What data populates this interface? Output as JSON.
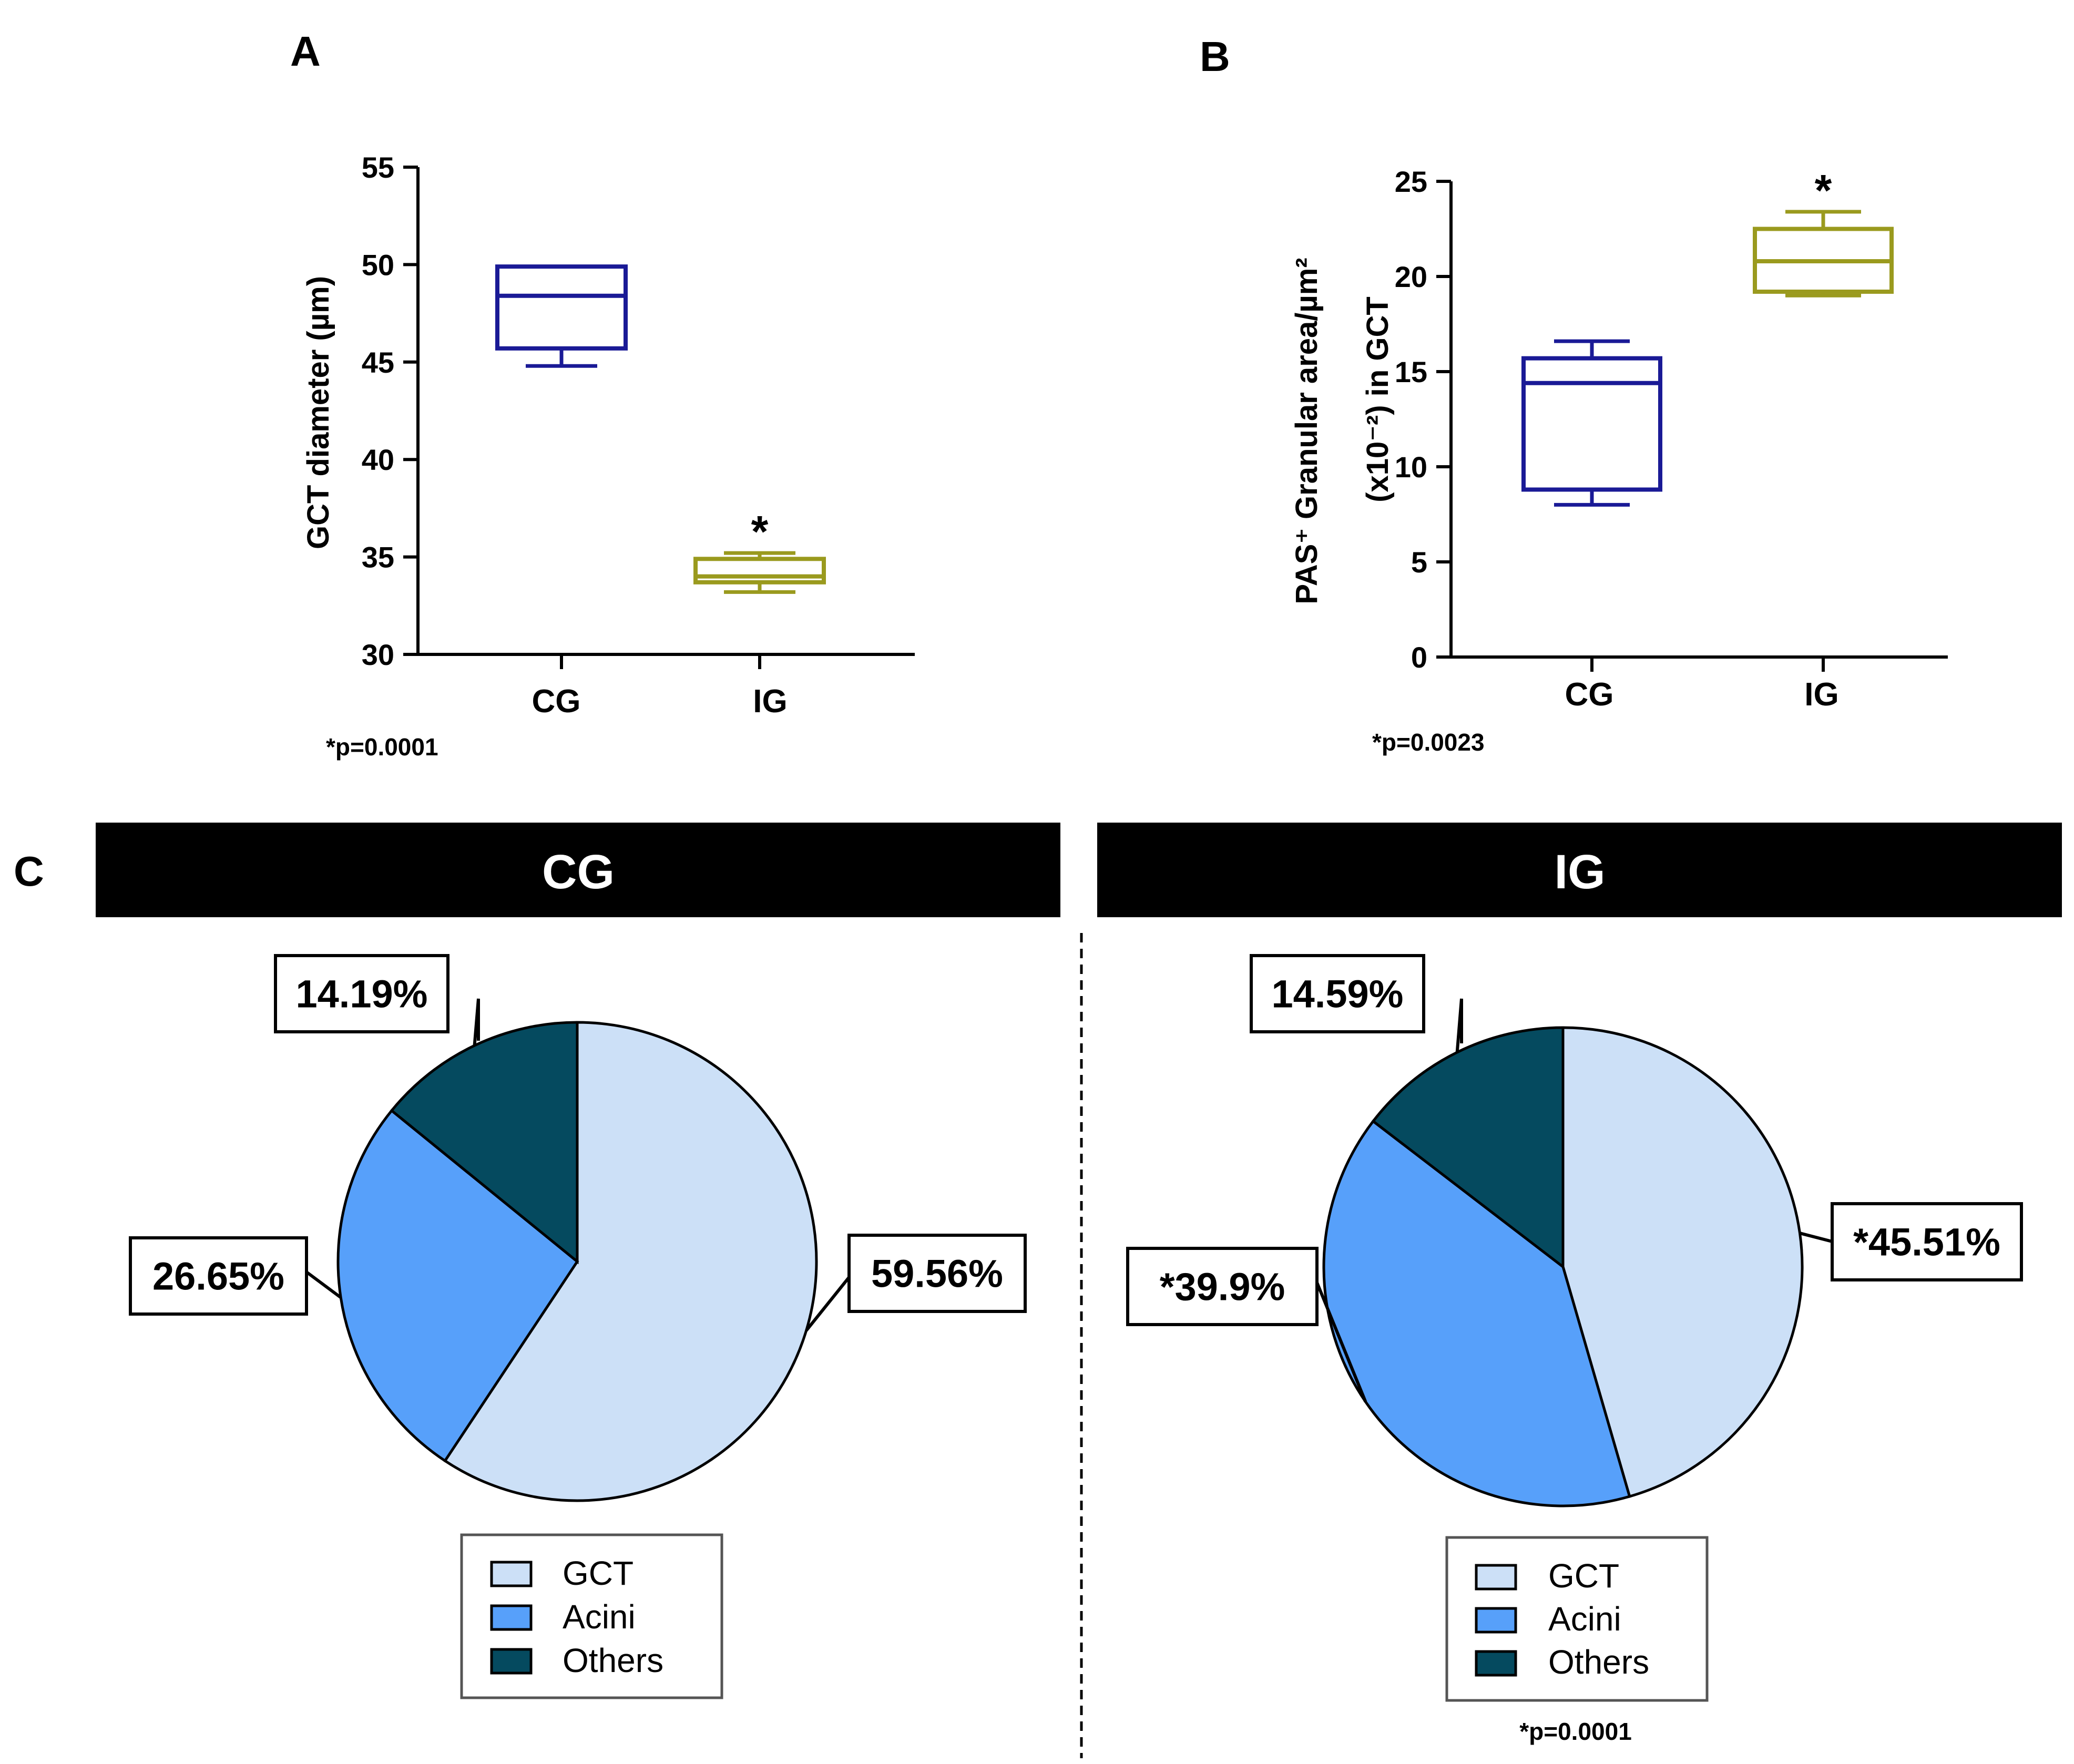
{
  "colors": {
    "cg_box": "#1a1a96",
    "ig_box": "#9a9a1e",
    "gct": "#cce0f7",
    "acini": "#57a0fa",
    "others": "#054a5f",
    "banner": "#000000"
  },
  "panel_a_letter": "A",
  "panel_b_letter": "B",
  "panel_c_letter": "C",
  "chart_data": [
    {
      "type": "box",
      "panel": "A",
      "title": "",
      "ylabel": "GCT diameter (µm)",
      "ylim": [
        30,
        55
      ],
      "yticks": [
        "30",
        "35",
        "40",
        "45",
        "50",
        "55"
      ],
      "ytick_values": [
        30,
        35,
        40,
        45,
        50,
        55
      ],
      "categories": [
        "CG",
        "IG"
      ],
      "series": [
        {
          "name": "CG",
          "min": 44.8,
          "q1": 45.7,
          "median": 48.4,
          "q3": 49.9,
          "max": 49.9,
          "significant": false
        },
        {
          "name": "IG",
          "min": 33.2,
          "q1": 33.7,
          "median": 34.0,
          "q3": 34.9,
          "max": 35.2,
          "significant": true
        }
      ],
      "star": "*",
      "footnote": "*p=0.0001"
    },
    {
      "type": "box",
      "panel": "B",
      "ylabel_line1": "PAS⁺ Granular area/µm²",
      "ylabel_line2": "(x10⁻²) in GCT",
      "ylim": [
        0,
        25
      ],
      "yticks": [
        "0",
        "5",
        "10",
        "15",
        "20",
        "25"
      ],
      "ytick_values": [
        0,
        5,
        10,
        15,
        20,
        25
      ],
      "categories": [
        "CG",
        "IG"
      ],
      "series": [
        {
          "name": "CG",
          "min": 8.0,
          "q1": 8.8,
          "median": 14.4,
          "q3": 15.7,
          "max": 16.6,
          "significant": false
        },
        {
          "name": "IG",
          "min": 19.0,
          "q1": 19.2,
          "median": 20.8,
          "q3": 22.5,
          "max": 23.4,
          "significant": true
        }
      ],
      "star": "*",
      "footnote": "*p=0.0023"
    },
    {
      "type": "pie",
      "panel": "C",
      "title": "CG",
      "slices": [
        {
          "name": "GCT",
          "value": 59.56,
          "label": "59.56%"
        },
        {
          "name": "Acini",
          "value": 26.65,
          "label": "26.65%"
        },
        {
          "name": "Others",
          "value": 14.19,
          "label": "14.19%"
        }
      ],
      "legend": [
        "GCT",
        "Acini",
        "Others"
      ]
    },
    {
      "type": "pie",
      "panel": "C",
      "title": "IG",
      "slices": [
        {
          "name": "GCT",
          "value": 45.51,
          "label": "*45.51%"
        },
        {
          "name": "Acini",
          "value": 39.9,
          "label": "*39.9%"
        },
        {
          "name": "Others",
          "value": 14.59,
          "label": "14.59%"
        }
      ],
      "legend": [
        "GCT",
        "Acini",
        "Others"
      ],
      "footnote": "*p=0.0001"
    }
  ]
}
